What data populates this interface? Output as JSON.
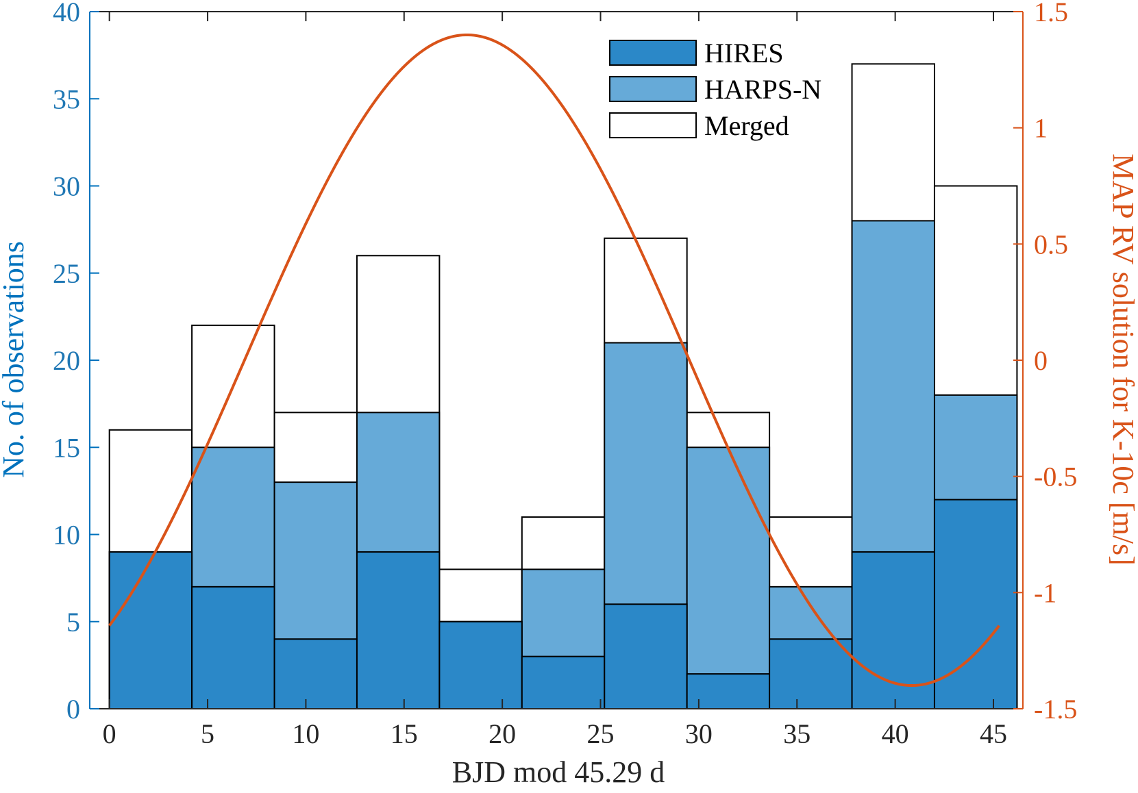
{
  "chart_data": {
    "type": "bar",
    "stacked": true,
    "xlabel": "BJD mod 45.29 d",
    "ylabel_left": "No. of observations",
    "ylabel_right": "MAP RV solution for K-10c [m/s]",
    "xlim": [
      -1,
      46.5
    ],
    "ylim_left": [
      0,
      40
    ],
    "ylim_right": [
      -1.5,
      1.5
    ],
    "xticks": [
      0,
      5,
      10,
      15,
      20,
      25,
      30,
      35,
      40,
      45
    ],
    "xtick_labels": [
      "0",
      "5",
      "10",
      "15",
      "20",
      "25",
      "30",
      "35",
      "40",
      "45"
    ],
    "yticks_left": [
      0,
      5,
      10,
      15,
      20,
      25,
      30,
      35,
      40
    ],
    "ytick_labels_left": [
      "0",
      "5",
      "10",
      "15",
      "20",
      "25",
      "30",
      "35",
      "40"
    ],
    "yticks_right": [
      -1.5,
      -1,
      -0.5,
      0,
      0.5,
      1,
      1.5
    ],
    "ytick_labels_right": [
      "-1.5",
      "-1",
      "-0.5",
      "0",
      "0.5",
      "1",
      "1.5"
    ],
    "bin_edges": [
      0,
      4.2,
      8.4,
      12.6,
      16.8,
      21.0,
      25.2,
      29.4,
      33.6,
      37.8,
      42.0,
      46.2
    ],
    "series": [
      {
        "name": "HIRES",
        "color": "#2b88c8",
        "values": [
          9,
          7,
          4,
          9,
          5,
          3,
          6,
          2,
          4,
          9,
          12
        ]
      },
      {
        "name": "HARPS-N",
        "color": "#66aad8",
        "values": [
          9,
          15,
          13,
          17,
          5,
          8,
          21,
          15,
          7,
          28,
          18
        ]
      },
      {
        "name": "Merged",
        "color": "#ffffff",
        "values": [
          16,
          22,
          17,
          26,
          8,
          11,
          27,
          17,
          11,
          37,
          30
        ]
      }
    ],
    "legend": [
      "HIRES",
      "HARPS-N",
      "Merged"
    ],
    "legend_position": "top-right",
    "rv_curve": {
      "name": "MAP RV solution for K-10c",
      "color": "#d95319",
      "amplitude": 1.4,
      "period": 45.29,
      "peak_phase": 18.2,
      "x_range": [
        0,
        45.29
      ]
    }
  }
}
